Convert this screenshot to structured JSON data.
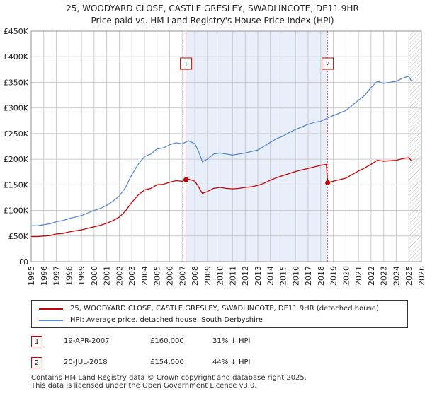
{
  "title_line1": "25, WOODYARD CLOSE, CASTLE GRESLEY, SWADLINCOTE, DE11 9HR",
  "title_line2": "Price paid vs. HM Land Registry's House Price Index (HPI)",
  "colors": {
    "property": "#cc0000",
    "hpi": "#5a8bd0",
    "shade": "#e8eefa",
    "grid": "#cccccc",
    "vline": "#e06666"
  },
  "legend": {
    "property_label": "25, WOODYARD CLOSE, CASTLE GRESLEY, SWADLINCOTE, DE11 9HR (detached house)",
    "hpi_label": "HPI: Average price, detached house, South Derbyshire"
  },
  "sales": [
    {
      "num": "1",
      "date": "19-APR-2007",
      "price": "£160,000",
      "hpi_diff": "31% ↓ HPI",
      "t": 2007.3,
      "value": 160000
    },
    {
      "num": "2",
      "date": "20-JUL-2018",
      "price": "£154,000",
      "hpi_diff": "44% ↓ HPI",
      "t": 2018.55,
      "value": 154000
    }
  ],
  "footer_line1": "Contains HM Land Registry data © Crown copyright and database right 2025.",
  "footer_line2": "This data is licensed under the Open Government Licence v3.0.",
  "chart_data": {
    "type": "line",
    "title": "25, WOODYARD CLOSE, CASTLE GRESLEY, SWADLINCOTE, DE11 9HR — Price paid vs. HM Land Registry's House Price Index (HPI)",
    "xlim": [
      1995,
      2026
    ],
    "ylim": [
      0,
      450000
    ],
    "y_ticks": [
      0,
      50000,
      100000,
      150000,
      200000,
      250000,
      300000,
      350000,
      400000,
      450000
    ],
    "y_tick_labels": [
      "£0",
      "£50K",
      "£100K",
      "£150K",
      "£200K",
      "£250K",
      "£300K",
      "£350K",
      "£400K",
      "£450K"
    ],
    "x_ticks": [
      "1995",
      "1996",
      "1997",
      "1998",
      "1999",
      "2000",
      "2001",
      "2002",
      "2003",
      "2004",
      "2005",
      "2006",
      "2007",
      "2008",
      "2009",
      "2010",
      "2011",
      "2012",
      "2013",
      "2014",
      "2015",
      "2016",
      "2017",
      "2018",
      "2019",
      "2020",
      "2021",
      "2022",
      "2023",
      "2024",
      "2025",
      "2026"
    ],
    "shaded_region": [
      2007.3,
      2018.55
    ],
    "future_hatch_from": 2025.0,
    "series": [
      {
        "name": "HPI: Average price, detached house, South Derbyshire",
        "x": [
          1995,
          1995.5,
          1996,
          1996.5,
          1997,
          1997.5,
          1998,
          1998.5,
          1999,
          1999.5,
          2000,
          2000.5,
          2001,
          2001.5,
          2002,
          2002.5,
          2003,
          2003.5,
          2004,
          2004.5,
          2005,
          2005.5,
          2006,
          2006.5,
          2007,
          2007.5,
          2008,
          2008.3,
          2008.6,
          2009,
          2009.5,
          2010,
          2010.5,
          2011,
          2011.5,
          2012,
          2012.5,
          2013,
          2013.5,
          2014,
          2014.5,
          2015,
          2015.5,
          2016,
          2016.5,
          2017,
          2017.5,
          2018,
          2018.5,
          2019,
          2019.5,
          2020,
          2020.5,
          2021,
          2021.5,
          2022,
          2022.5,
          2023,
          2023.5,
          2024,
          2024.5,
          2025,
          2025.2
        ],
        "values": [
          70000,
          70000,
          72000,
          74000,
          78000,
          80000,
          84000,
          87000,
          90000,
          95000,
          100000,
          104000,
          110000,
          118000,
          128000,
          145000,
          170000,
          190000,
          205000,
          210000,
          220000,
          222000,
          228000,
          232000,
          230000,
          236000,
          230000,
          215000,
          195000,
          200000,
          210000,
          212000,
          210000,
          208000,
          210000,
          212000,
          215000,
          218000,
          225000,
          233000,
          240000,
          245000,
          252000,
          258000,
          263000,
          268000,
          272000,
          274000,
          280000,
          285000,
          290000,
          295000,
          305000,
          315000,
          325000,
          340000,
          352000,
          348000,
          350000,
          352000,
          358000,
          362000,
          352000
        ]
      },
      {
        "name": "25, WOODYARD CLOSE, CASTLE GRESLEY, SWADLINCOTE, DE11 9HR (detached house)",
        "x": [
          1995,
          1995.5,
          1996,
          1996.5,
          1997,
          1997.5,
          1998,
          1998.5,
          1999,
          1999.5,
          2000,
          2000.5,
          2001,
          2001.5,
          2002,
          2002.5,
          2003,
          2003.5,
          2004,
          2004.5,
          2005,
          2005.5,
          2006,
          2006.5,
          2007,
          2007.3,
          2007.5,
          2008,
          2008.3,
          2008.6,
          2009,
          2009.5,
          2010,
          2010.5,
          2011,
          2011.5,
          2012,
          2012.5,
          2013,
          2013.5,
          2014,
          2014.5,
          2015,
          2015.5,
          2016,
          2016.5,
          2017,
          2017.5,
          2018,
          2018.45,
          2018.55,
          2019,
          2019.5,
          2020,
          2020.5,
          2021,
          2021.5,
          2022,
          2022.5,
          2023,
          2023.5,
          2024,
          2024.5,
          2025,
          2025.2
        ],
        "values": [
          49000,
          49000,
          50000,
          51000,
          54000,
          55000,
          58000,
          60000,
          62000,
          65000,
          68000,
          71000,
          75000,
          80000,
          87000,
          99000,
          116000,
          130000,
          140000,
          143000,
          150000,
          151000,
          155000,
          158000,
          157000,
          160000,
          161000,
          157000,
          146000,
          133000,
          137000,
          143000,
          145000,
          143000,
          142000,
          143000,
          145000,
          146000,
          149000,
          153000,
          159000,
          164000,
          168000,
          172000,
          176000,
          179000,
          182000,
          185000,
          188000,
          190000,
          154000,
          157000,
          160000,
          163000,
          170000,
          177000,
          183000,
          190000,
          198000,
          196000,
          197000,
          198000,
          201000,
          203000,
          197000
        ]
      }
    ],
    "annotations": [
      {
        "label": "1",
        "x": 2007.3
      },
      {
        "label": "2",
        "x": 2018.55
      }
    ]
  }
}
